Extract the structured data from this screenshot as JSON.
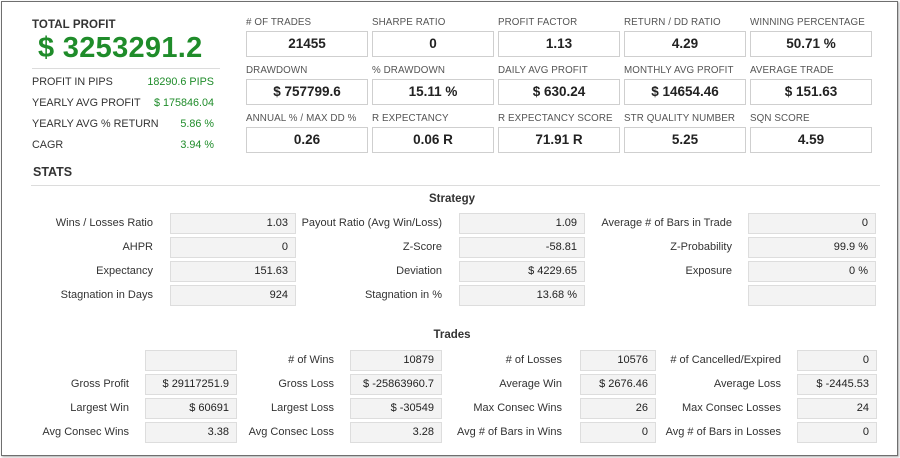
{
  "summary": {
    "title": "TOTAL PROFIT",
    "total_profit": "$ 3253291.2",
    "rows": [
      {
        "label": "PROFIT IN PIPS",
        "value": "18290.6 PIPS"
      },
      {
        "label": "YEARLY AVG PROFIT",
        "value": "$ 175846.04"
      },
      {
        "label": "YEARLY AVG % RETURN",
        "value": "5.86 %"
      },
      {
        "label": "CAGR",
        "value": "3.94 %"
      }
    ]
  },
  "metrics": [
    {
      "label": "# OF TRADES",
      "value": "21455"
    },
    {
      "label": "SHARPE RATIO",
      "value": "0"
    },
    {
      "label": "PROFIT FACTOR",
      "value": "1.13"
    },
    {
      "label": "RETURN / DD RATIO",
      "value": "4.29"
    },
    {
      "label": "WINNING PERCENTAGE",
      "value": "50.71 %"
    },
    {
      "label": "DRAWDOWN",
      "value": "$ 757799.6"
    },
    {
      "label": "% DRAWDOWN",
      "value": "15.11 %"
    },
    {
      "label": "DAILY AVG PROFIT",
      "value": "$ 630.24"
    },
    {
      "label": "MONTHLY AVG PROFIT",
      "value": "$ 14654.46"
    },
    {
      "label": "AVERAGE TRADE",
      "value": "$ 151.63"
    },
    {
      "label": "ANNUAL % / MAX DD %",
      "value": "0.26"
    },
    {
      "label": "R EXPECTANCY",
      "value": "0.06 R"
    },
    {
      "label": "R EXPECTANCY SCORE",
      "value": "71.91 R"
    },
    {
      "label": "STR QUALITY NUMBER",
      "value": "5.25"
    },
    {
      "label": "SQN SCORE",
      "value": "4.59"
    }
  ],
  "stats": {
    "title": "STATS",
    "strategy": {
      "title": "Strategy",
      "rows": [
        [
          {
            "label": "Wins / Losses Ratio",
            "value": "1.03"
          },
          {
            "label": "Payout Ratio (Avg Win/Loss)",
            "value": "1.09"
          },
          {
            "label": "Average # of Bars in Trade",
            "value": "0"
          }
        ],
        [
          {
            "label": "AHPR",
            "value": "0"
          },
          {
            "label": "Z-Score",
            "value": "-58.81"
          },
          {
            "label": "Z-Probability",
            "value": "99.9 %"
          }
        ],
        [
          {
            "label": "Expectancy",
            "value": "151.63"
          },
          {
            "label": "Deviation",
            "value": "$ 4229.65"
          },
          {
            "label": "Exposure",
            "value": "0 %"
          }
        ],
        [
          {
            "label": "Stagnation in Days",
            "value": "924"
          },
          {
            "label": "Stagnation in %",
            "value": "13.68 %"
          },
          {
            "label": "",
            "value": ""
          }
        ]
      ]
    },
    "trades": {
      "title": "Trades",
      "rows": [
        [
          {
            "label": "",
            "value": ""
          },
          {
            "label": "# of Wins",
            "value": "10879"
          },
          {
            "label": "# of Losses",
            "value": "10576"
          },
          {
            "label": "# of Cancelled/Expired",
            "value": "0"
          }
        ],
        [
          {
            "label": "Gross Profit",
            "value": "$ 29117251.9"
          },
          {
            "label": "Gross Loss",
            "value": "$ -25863960.7"
          },
          {
            "label": "Average Win",
            "value": "$ 2676.46"
          },
          {
            "label": "Average Loss",
            "value": "$ -2445.53"
          }
        ],
        [
          {
            "label": "Largest Win",
            "value": "$ 60691"
          },
          {
            "label": "Largest Loss",
            "value": "$ -30549"
          },
          {
            "label": "Max Consec Wins",
            "value": "26"
          },
          {
            "label": "Max Consec Losses",
            "value": "24"
          }
        ],
        [
          {
            "label": "Avg Consec Wins",
            "value": "3.38"
          },
          {
            "label": "Avg Consec Loss",
            "value": "3.28"
          },
          {
            "label": "Avg # of Bars in Wins",
            "value": "0"
          },
          {
            "label": "Avg # of Bars in Losses",
            "value": "0"
          }
        ]
      ]
    }
  }
}
